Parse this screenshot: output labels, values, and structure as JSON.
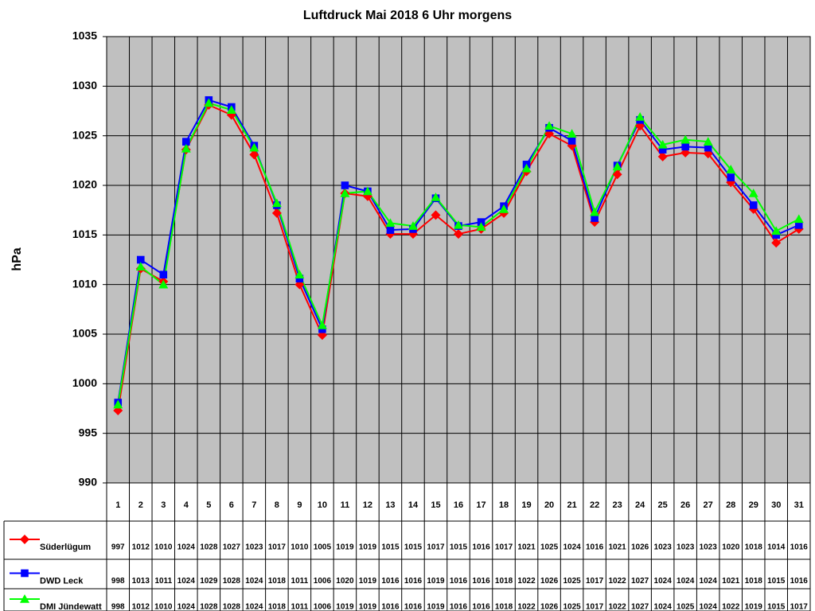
{
  "chart_data": {
    "type": "line",
    "title": "Luftdruck Mai 2018 6 Uhr morgens",
    "y_label": "hPa",
    "categories": [
      "1",
      "2",
      "3",
      "4",
      "5",
      "6",
      "7",
      "8",
      "9",
      "10",
      "11",
      "12",
      "13",
      "14",
      "15",
      "16",
      "17",
      "18",
      "19",
      "20",
      "21",
      "22",
      "23",
      "24",
      "25",
      "26",
      "27",
      "28",
      "29",
      "30",
      "31"
    ],
    "ylim": [
      990,
      1035
    ],
    "yticks": [
      990,
      995,
      1000,
      1005,
      1010,
      1015,
      1020,
      1025,
      1030,
      1035
    ],
    "grid": true,
    "background": "#c0c0c0",
    "series": [
      {
        "name": "Süderlügum",
        "color": "#ff0000",
        "marker": "diamond",
        "values": [
          997.3,
          1011.6,
          1010.3,
          1023.6,
          1028.1,
          1027.1,
          1023.1,
          1017.2,
          1010.0,
          1004.9,
          1019.2,
          1018.9,
          1015.1,
          1015.1,
          1017.0,
          1015.1,
          1015.6,
          1017.2,
          1021.4,
          1025.2,
          1024.0,
          1016.3,
          1021.1,
          1026.0,
          1022.9,
          1023.3,
          1023.2,
          1020.3,
          1017.6,
          1014.2,
          1015.6
        ],
        "value_labels": [
          "997",
          "1012",
          "1010",
          "1024",
          "1028",
          "1027",
          "1023",
          "1017",
          "1010",
          "1005",
          "1019",
          "1019",
          "1015",
          "1015",
          "1017",
          "1015",
          "1016",
          "1017",
          "1021",
          "1025",
          "1024",
          "1016",
          "1021",
          "1026",
          "1023",
          "1023",
          "1023",
          "1020",
          "1018",
          "1014",
          "1016"
        ]
      },
      {
        "name": "DWD Leck",
        "color": "#0000ff",
        "marker": "square",
        "values": [
          998.1,
          1012.5,
          1011.0,
          1024.4,
          1028.6,
          1027.9,
          1024.0,
          1018.0,
          1010.6,
          1005.5,
          1020.0,
          1019.4,
          1015.5,
          1015.6,
          1018.7,
          1015.9,
          1016.3,
          1017.9,
          1022.1,
          1025.8,
          1024.5,
          1016.7,
          1022.0,
          1026.6,
          1023.6,
          1023.9,
          1023.8,
          1020.8,
          1018.0,
          1015.0,
          1016.0
        ],
        "value_labels": [
          "998",
          "1013",
          "1011",
          "1024",
          "1029",
          "1028",
          "1024",
          "1018",
          "1011",
          "1006",
          "1020",
          "1019",
          "1016",
          "1016",
          "1019",
          "1016",
          "1016",
          "1018",
          "1022",
          "1026",
          "1025",
          "1017",
          "1022",
          "1027",
          "1024",
          "1024",
          "1024",
          "1021",
          "1018",
          "1015",
          "1016"
        ]
      },
      {
        "name": "DMI Jündewatt",
        "color": "#00ff00",
        "marker": "triangle",
        "values": [
          997.9,
          1011.8,
          1010.0,
          1023.7,
          1028.3,
          1027.6,
          1023.8,
          1018.2,
          1011.0,
          1005.9,
          1019.2,
          1019.4,
          1016.2,
          1015.9,
          1018.8,
          1016.0,
          1015.8,
          1017.6,
          1021.7,
          1026.0,
          1025.2,
          1017.3,
          1021.9,
          1026.9,
          1024.1,
          1024.6,
          1024.4,
          1021.6,
          1019.2,
          1015.4,
          1016.6
        ],
        "value_labels": [
          "998",
          "1012",
          "1010",
          "1024",
          "1028",
          "1028",
          "1024",
          "1018",
          "1011",
          "1006",
          "1019",
          "1019",
          "1016",
          "1016",
          "1019",
          "1016",
          "1016",
          "1018",
          "1022",
          "1026",
          "1025",
          "1017",
          "1022",
          "1027",
          "1024",
          "1025",
          "1024",
          "1022",
          "1019",
          "1015",
          "1017"
        ]
      }
    ]
  }
}
